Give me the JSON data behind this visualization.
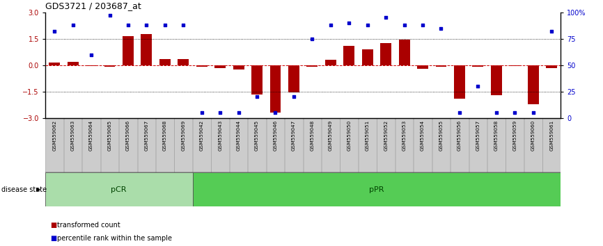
{
  "title": "GDS3721 / 203687_at",
  "samples": [
    "GSM559062",
    "GSM559063",
    "GSM559064",
    "GSM559065",
    "GSM559066",
    "GSM559067",
    "GSM559068",
    "GSM559069",
    "GSM559042",
    "GSM559043",
    "GSM559044",
    "GSM559045",
    "GSM559046",
    "GSM559047",
    "GSM559048",
    "GSM559049",
    "GSM559050",
    "GSM559051",
    "GSM559052",
    "GSM559053",
    "GSM559054",
    "GSM559055",
    "GSM559056",
    "GSM559057",
    "GSM559058",
    "GSM559059",
    "GSM559060",
    "GSM559061"
  ],
  "transformed_count": [
    0.15,
    0.2,
    -0.05,
    -0.1,
    1.65,
    1.75,
    0.35,
    0.35,
    -0.1,
    -0.15,
    -0.25,
    -1.65,
    -2.7,
    -1.55,
    -0.1,
    0.3,
    1.1,
    0.9,
    1.25,
    1.45,
    -0.2,
    -0.1,
    -1.9,
    -0.1,
    -1.7,
    -0.05,
    -2.2,
    -0.15
  ],
  "percentile_rank": [
    82,
    88,
    60,
    97,
    88,
    88,
    88,
    88,
    5,
    5,
    5,
    20,
    5,
    20,
    75,
    88,
    90,
    88,
    95,
    88,
    88,
    85,
    5,
    30,
    5,
    5,
    5,
    82
  ],
  "groups": [
    {
      "label": "pCR",
      "start": 0,
      "end": 8,
      "color": "#aaddaa"
    },
    {
      "label": "pPR",
      "start": 8,
      "end": 28,
      "color": "#55cc55"
    }
  ],
  "bar_color": "#AA0000",
  "dot_color": "#0000CC",
  "ylim": [
    -3,
    3
  ],
  "y_ticks_left": [
    -3,
    -1.5,
    0,
    1.5,
    3
  ],
  "y_ticks_right": [
    0,
    25,
    50,
    75,
    100
  ],
  "dotted_lines": [
    1.5,
    -1.5
  ],
  "zero_line_color": "#CC0000",
  "background_color": "#ffffff",
  "n_pcr": 8,
  "n_total": 28
}
